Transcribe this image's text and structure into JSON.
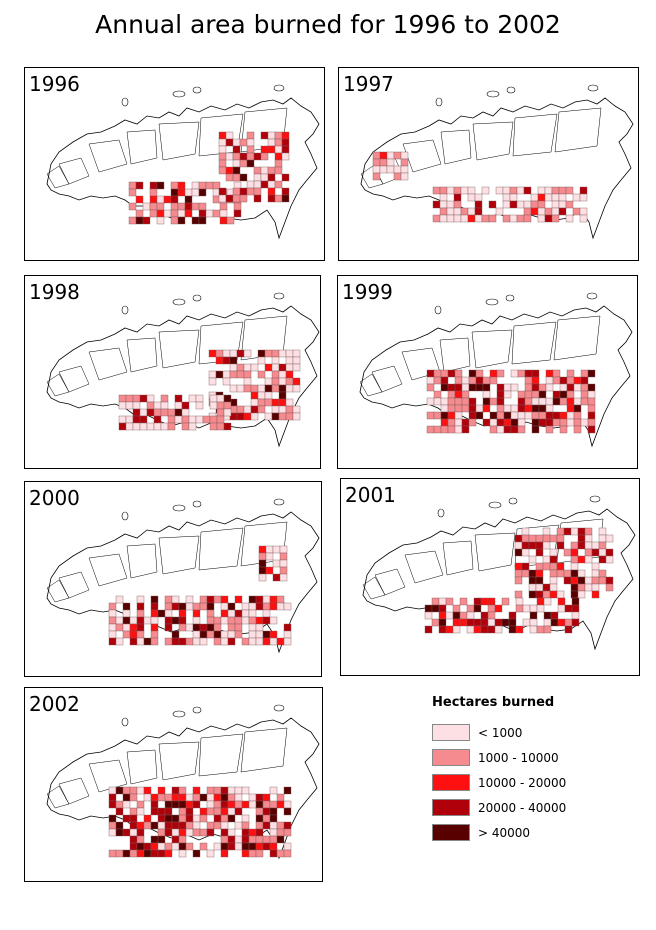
{
  "title": "Annual area burned for 1996 to 2002",
  "legend": {
    "title": "Hectares burned",
    "items": [
      {
        "label": "< 1000",
        "color": "#fde0e4"
      },
      {
        "label": "1000 - 10000",
        "color": "#f58a8f"
      },
      {
        "label": "10000 - 20000",
        "color": "#ff1010"
      },
      {
        "label": "20000 - 40000",
        "color": "#b0000a"
      },
      {
        "label": "> 40000",
        "color": "#580000"
      }
    ]
  },
  "panels": [
    {
      "year": "1996",
      "intensity": "high-central-east"
    },
    {
      "year": "1997",
      "intensity": "moderate-south"
    },
    {
      "year": "1998",
      "intensity": "high-far-east"
    },
    {
      "year": "1999",
      "intensity": "high-central"
    },
    {
      "year": "2000",
      "intensity": "high-south-east"
    },
    {
      "year": "2001",
      "intensity": "high-north-east"
    },
    {
      "year": "2002",
      "intensity": "high-central-east"
    }
  ]
}
